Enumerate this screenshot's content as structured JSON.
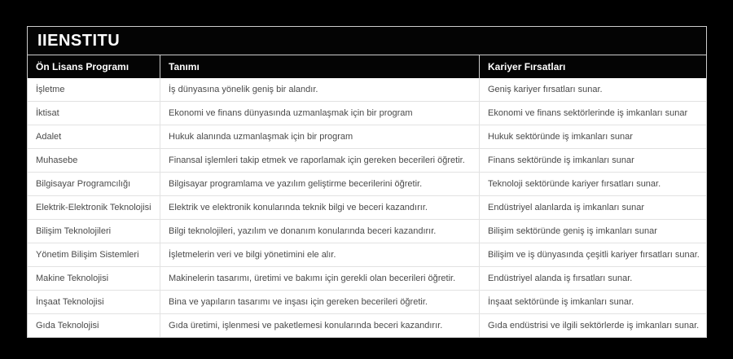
{
  "page": {
    "colors": {
      "background": "#000000",
      "bar_background": "#040404",
      "header_text": "#ffffff",
      "body_text": "#4a4a4a",
      "outer_border": "#cccccc",
      "inner_border": "#e2e2e2",
      "row_background": "#ffffff"
    }
  },
  "table": {
    "title": "IIENSTITU",
    "columns": [
      "Ön Lisans Programı",
      "Tanımı",
      "Kariyer Fırsatları"
    ],
    "rows": [
      {
        "program": "İşletme",
        "description": "İş dünyasına yönelik geniş bir alandır.",
        "career": "Geniş kariyer fırsatları sunar."
      },
      {
        "program": "İktisat",
        "description": "Ekonomi ve finans dünyasında uzmanlaşmak için bir program",
        "career": "Ekonomi ve finans sektörlerinde iş imkanları sunar"
      },
      {
        "program": "Adalet",
        "description": "Hukuk alanında uzmanlaşmak için bir program",
        "career": "Hukuk sektöründe iş imkanları sunar"
      },
      {
        "program": "Muhasebe",
        "description": "Finansal işlemleri takip etmek ve raporlamak için gereken becerileri öğretir.",
        "career": "Finans sektöründe iş imkanları sunar"
      },
      {
        "program": "Bilgisayar Programcılığı",
        "description": "Bilgisayar programlama ve yazılım geliştirme becerilerini öğretir.",
        "career": "Teknoloji sektöründe kariyer fırsatları sunar."
      },
      {
        "program": "Elektrik-Elektronik Teknolojisi",
        "description": "Elektrik ve elektronik konularında teknik bilgi ve beceri kazandırır.",
        "career": "Endüstriyel alanlarda iş imkanları sunar"
      },
      {
        "program": "Bilişim Teknolojileri",
        "description": "Bilgi teknolojileri, yazılım ve donanım konularında beceri kazandırır.",
        "career": "Bilişim sektöründe geniş iş imkanları sunar"
      },
      {
        "program": "Yönetim Bilişim Sistemleri",
        "description": "İşletmelerin veri ve bilgi yönetimini ele alır.",
        "career": "Bilişim ve iş dünyasında çeşitli kariyer fırsatları sunar."
      },
      {
        "program": "Makine Teknolojisi",
        "description": "Makinelerin tasarımı, üretimi ve bakımı için gerekli olan becerileri öğretir.",
        "career": "Endüstriyel alanda iş fırsatları sunar."
      },
      {
        "program": "İnşaat Teknolojisi",
        "description": "Bina ve yapıların tasarımı ve inşası için gereken becerileri öğretir.",
        "career": "İnşaat sektöründe iş imkanları sunar."
      },
      {
        "program": "Gıda Teknolojisi",
        "description": "Gıda üretimi, işlenmesi ve paketlemesi konularında beceri kazandırır.",
        "career": "Gıda endüstrisi ve ilgili sektörlerde iş imkanları sunar."
      }
    ]
  }
}
